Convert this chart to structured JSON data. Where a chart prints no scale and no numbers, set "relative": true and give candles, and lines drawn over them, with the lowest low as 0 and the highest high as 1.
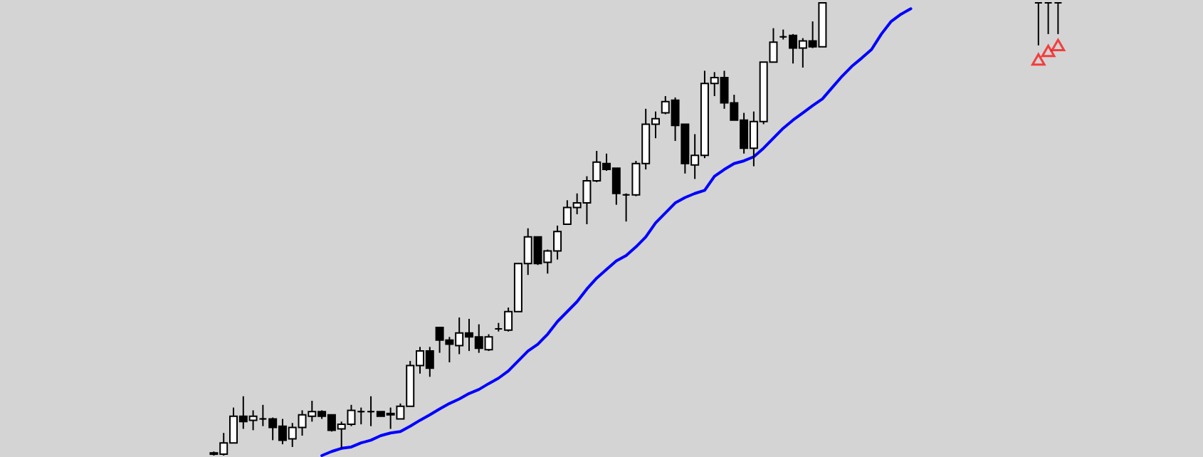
{
  "chart_data": {
    "type": "candlestick",
    "relative": true,
    "categories": [
      null,
      null,
      null,
      null,
      null,
      null,
      null,
      null,
      null,
      null,
      null,
      null,
      null,
      null,
      null,
      null,
      null,
      null,
      null,
      null,
      null,
      null,
      null,
      null,
      null,
      null,
      null,
      null,
      null,
      null,
      null,
      null,
      null,
      null,
      null,
      null,
      null,
      null,
      null,
      null,
      null,
      null,
      null,
      null,
      null,
      null,
      null,
      null,
      null,
      null,
      null,
      null,
      null,
      null,
      null,
      null,
      null,
      null,
      null,
      null,
      null,
      null,
      null,
      null,
      null,
      null,
      null,
      null,
      null,
      null,
      null,
      null,
      null,
      null,
      null,
      null,
      null,
      null,
      null,
      null,
      null,
      null,
      null,
      null,
      null,
      null,
      null
    ],
    "ohlc": [
      [
        0.003,
        0.009,
        0,
        0.006
      ],
      [
        0.003,
        0.05,
        0,
        0.028
      ],
      [
        0.028,
        0.106,
        0.028,
        0.087
      ],
      [
        0.087,
        0.131,
        0.059,
        0.075
      ],
      [
        0.078,
        0.1,
        0.056,
        0.087
      ],
      [
        0.081,
        0.112,
        0.065,
        0.081
      ],
      [
        0.081,
        0.084,
        0.034,
        0.062
      ],
      [
        0.065,
        0.081,
        0.025,
        0.034
      ],
      [
        0.037,
        0.072,
        0.019,
        0.062
      ],
      [
        0.062,
        0.1,
        0.044,
        0.09
      ],
      [
        0.087,
        0.121,
        0.075,
        0.097
      ],
      [
        0.097,
        0.1,
        0.081,
        0.087
      ],
      [
        0.09,
        0.09,
        0.053,
        0.056
      ],
      [
        0.059,
        0.075,
        0.016,
        0.069
      ],
      [
        0.069,
        0.112,
        0.065,
        0.1
      ],
      [
        0.097,
        0.106,
        0.069,
        0.097
      ],
      [
        0.097,
        0.131,
        0.065,
        0.097
      ],
      [
        0.097,
        0.097,
        0.087,
        0.087
      ],
      [
        0.093,
        0.106,
        0.059,
        0.09
      ],
      [
        0.081,
        0.115,
        0.081,
        0.109
      ],
      [
        0.109,
        0.209,
        0.109,
        0.199
      ],
      [
        0.199,
        0.24,
        0.181,
        0.231
      ],
      [
        0.231,
        0.24,
        0.174,
        0.193
      ],
      [
        0.283,
        0.283,
        0.227,
        0.255
      ],
      [
        0.255,
        0.262,
        0.206,
        0.246
      ],
      [
        0.243,
        0.305,
        0.224,
        0.271
      ],
      [
        0.271,
        0.302,
        0.231,
        0.262
      ],
      [
        0.262,
        0.29,
        0.227,
        0.237
      ],
      [
        0.234,
        0.268,
        0.231,
        0.262
      ],
      [
        0.28,
        0.293,
        0.274,
        0.28
      ],
      [
        0.277,
        0.327,
        0.274,
        0.318
      ],
      [
        0.318,
        0.424,
        0.318,
        0.424
      ],
      [
        0.424,
        0.502,
        0.399,
        0.483
      ],
      [
        0.483,
        0.483,
        0.421,
        0.424
      ],
      [
        0.427,
        0.455,
        0.402,
        0.452
      ],
      [
        0.452,
        0.508,
        0.433,
        0.495
      ],
      [
        0.511,
        0.564,
        0.511,
        0.548
      ],
      [
        0.548,
        0.579,
        0.533,
        0.558
      ],
      [
        0.558,
        0.617,
        0.511,
        0.607
      ],
      [
        0.607,
        0.673,
        0.604,
        0.648
      ],
      [
        0.645,
        0.667,
        0.629,
        0.632
      ],
      [
        0.635,
        0.635,
        0.554,
        0.579
      ],
      [
        0.576,
        0.579,
        0.517,
        0.576
      ],
      [
        0.576,
        0.651,
        0.573,
        0.645
      ],
      [
        0.645,
        0.766,
        0.632,
        0.732
      ],
      [
        0.732,
        0.76,
        0.701,
        0.744
      ],
      [
        0.757,
        0.794,
        0.754,
        0.782
      ],
      [
        0.785,
        0.791,
        0.695,
        0.729
      ],
      [
        0.732,
        0.732,
        0.623,
        0.645
      ],
      [
        0.642,
        0.71,
        0.611,
        0.663
      ],
      [
        0.663,
        0.85,
        0.657,
        0.822
      ],
      [
        0.822,
        0.847,
        0.794,
        0.835
      ],
      [
        0.835,
        0.85,
        0.766,
        0.779
      ],
      [
        0.779,
        0.797,
        0.741,
        0.741
      ],
      [
        0.741,
        0.757,
        0.667,
        0.679
      ],
      [
        0.679,
        0.76,
        0.639,
        0.738
      ],
      [
        0.738,
        0.869,
        0.732,
        0.869
      ],
      [
        0.869,
        0.944,
        0.869,
        0.913
      ],
      [
        0.925,
        0.941,
        0.919,
        0.925
      ],
      [
        0.928,
        0.931,
        0.866,
        0.9
      ],
      [
        0.9,
        0.922,
        0.857,
        0.916
      ],
      [
        0.916,
        0.959,
        0.9,
        0.903
      ],
      [
        0.903,
        1,
        0.903,
        1
      ],
      null,
      null,
      null,
      null,
      null,
      null,
      null,
      null,
      null,
      null,
      null,
      null,
      null,
      null,
      null,
      null,
      null,
      null,
      null,
      null,
      null,
      [
        1,
        1,
        0.906,
        1
      ],
      [
        1,
        1,
        0.931,
        1
      ],
      [
        1,
        1,
        0.931,
        1
      ]
    ],
    "series": [
      {
        "type": "line",
        "color": "#0000ff",
        "values": [
          null,
          null,
          null,
          null,
          null,
          null,
          null,
          null,
          null,
          null,
          null,
          0,
          0.009,
          0.016,
          0.019,
          0.028,
          0.034,
          0.044,
          0.05,
          0.053,
          0.065,
          0.078,
          0.09,
          0.103,
          0.115,
          0.125,
          0.137,
          0.146,
          0.159,
          0.171,
          0.187,
          0.209,
          0.231,
          0.246,
          0.268,
          0.296,
          0.318,
          0.34,
          0.368,
          0.392,
          0.411,
          0.43,
          0.442,
          0.461,
          0.483,
          0.514,
          0.536,
          0.558,
          0.57,
          0.579,
          0.586,
          0.617,
          0.632,
          0.645,
          0.651,
          0.66,
          0.679,
          0.701,
          0.723,
          0.741,
          0.757,
          0.773,
          0.788,
          0.813,
          0.838,
          0.86,
          0.878,
          0.897,
          0.931,
          0.959,
          0.975,
          0.987,
          null,
          null,
          null,
          null,
          null,
          null,
          null,
          null,
          null,
          null,
          null,
          null,
          null,
          null,
          null
        ]
      },
      {
        "type": "scatter",
        "color": "#ff0000",
        "marker": "triangle",
        "values": [
          null,
          null,
          null,
          null,
          null,
          null,
          null,
          null,
          null,
          null,
          null,
          null,
          null,
          null,
          null,
          null,
          null,
          null,
          null,
          null,
          null,
          null,
          null,
          null,
          null,
          null,
          null,
          null,
          null,
          null,
          null,
          null,
          null,
          null,
          null,
          null,
          null,
          null,
          null,
          null,
          null,
          null,
          null,
          null,
          null,
          null,
          null,
          null,
          null,
          null,
          null,
          null,
          null,
          null,
          null,
          null,
          null,
          null,
          null,
          null,
          null,
          null,
          null,
          null,
          null,
          null,
          null,
          null,
          null,
          null,
          null,
          null,
          null,
          null,
          null,
          null,
          null,
          null,
          null,
          null,
          null,
          null,
          null,
          null,
          0.875,
          0.894,
          0.907
        ]
      }
    ]
  }
}
